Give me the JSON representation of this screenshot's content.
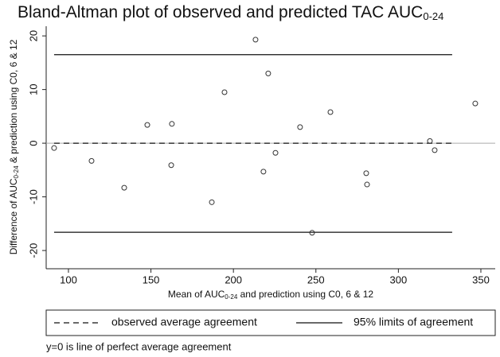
{
  "chart_data": {
    "type": "scatter",
    "title": [
      "Bland-Altman plot of observed and predicted TAC AUC",
      "0-24"
    ],
    "xlabel": [
      "Mean of AUC",
      "0-24",
      " and prediction using C0, 6 & 12"
    ],
    "ylabel": [
      "Difference of AUC",
      "0-24",
      " & prediction using C0, 6 & 12"
    ],
    "x": [
      91.3,
      114.0,
      133.8,
      147.8,
      162.7,
      162.3,
      186.9,
      194.6,
      213.4,
      218.2,
      221.1,
      225.5,
      240.4,
      247.7,
      258.8,
      280.5,
      281.0,
      319.1,
      322.0,
      346.6
    ],
    "values": [
      -0.9,
      -3.3,
      -8.3,
      3.4,
      3.6,
      -4.1,
      -11.0,
      9.5,
      19.3,
      -5.3,
      13.0,
      -1.8,
      3.0,
      -16.7,
      5.8,
      -5.6,
      -7.7,
      0.4,
      -1.3,
      7.4
    ],
    "marker_color": "#333333",
    "xlim": [
      86.5,
      358.7
    ],
    "ylim": [
      -23.4,
      21.8
    ],
    "xticks": [
      100,
      150,
      200,
      250,
      300,
      350
    ],
    "yticks": [
      -20,
      -10,
      0,
      10,
      20
    ],
    "perfect_agreement_line": 0,
    "reference_lines": [
      {
        "name": "observed average agreement",
        "style": "dashed",
        "values": [
          0
        ],
        "x": [
          91.3,
          332.6
        ]
      },
      {
        "name": "95% limits of agreement",
        "style": "solid",
        "values": [
          16.5,
          -16.6
        ],
        "x": [
          91.3,
          332.6
        ]
      }
    ],
    "note": "y=0 is line of perfect average agreement"
  }
}
